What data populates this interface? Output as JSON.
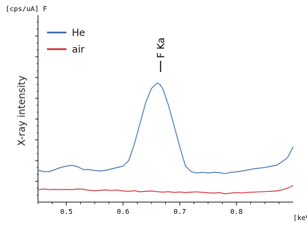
{
  "chart_data": {
    "type": "line",
    "unit_label": "[cps/uA] F",
    "xlabel": "[keV]",
    "ylabel": "X-ray intensity",
    "xlim": [
      0.45,
      0.9
    ],
    "ylim": [
      0,
      1.35
    ],
    "x_ticks": [
      0.5,
      0.6,
      0.7,
      0.8
    ],
    "x_tick_labels": [
      "0.5",
      "0.6",
      "0.7",
      "0.8"
    ],
    "x_minor_ticks": [
      0.45,
      0.475,
      0.525,
      0.55,
      0.575,
      0.625,
      0.65,
      0.675,
      0.725,
      0.75,
      0.775,
      0.825,
      0.85,
      0.875
    ],
    "y_ticks": [
      0.15,
      0.3,
      0.45,
      0.6,
      0.75,
      0.9,
      1.05,
      1.2
    ],
    "annotation": {
      "text": "F Ka",
      "x": 0.665,
      "y": 0.9
    },
    "legend_position": "top-left",
    "series": [
      {
        "name": "He",
        "color": "#3b6db0",
        "x": [
          0.45,
          0.46,
          0.47,
          0.48,
          0.49,
          0.5,
          0.51,
          0.52,
          0.53,
          0.54,
          0.55,
          0.56,
          0.57,
          0.58,
          0.59,
          0.6,
          0.61,
          0.62,
          0.63,
          0.64,
          0.65,
          0.66,
          0.665,
          0.67,
          0.68,
          0.69,
          0.7,
          0.71,
          0.72,
          0.73,
          0.74,
          0.75,
          0.76,
          0.77,
          0.78,
          0.79,
          0.8,
          0.81,
          0.82,
          0.83,
          0.84,
          0.85,
          0.86,
          0.87,
          0.88,
          0.89,
          0.9
        ],
        "values": [
          0.23,
          0.22,
          0.22,
          0.235,
          0.25,
          0.26,
          0.265,
          0.255,
          0.235,
          0.235,
          0.228,
          0.225,
          0.23,
          0.24,
          0.25,
          0.26,
          0.3,
          0.42,
          0.57,
          0.72,
          0.82,
          0.86,
          0.85,
          0.82,
          0.7,
          0.55,
          0.4,
          0.26,
          0.22,
          0.21,
          0.215,
          0.21,
          0.215,
          0.212,
          0.206,
          0.215,
          0.218,
          0.225,
          0.232,
          0.24,
          0.245,
          0.25,
          0.258,
          0.265,
          0.29,
          0.32,
          0.4
        ]
      },
      {
        "name": "air",
        "color": "#d42a2a",
        "x": [
          0.45,
          0.46,
          0.47,
          0.48,
          0.49,
          0.5,
          0.51,
          0.52,
          0.53,
          0.54,
          0.55,
          0.56,
          0.57,
          0.58,
          0.59,
          0.6,
          0.61,
          0.62,
          0.63,
          0.64,
          0.65,
          0.66,
          0.67,
          0.68,
          0.69,
          0.7,
          0.71,
          0.72,
          0.73,
          0.74,
          0.75,
          0.76,
          0.77,
          0.78,
          0.79,
          0.8,
          0.81,
          0.82,
          0.83,
          0.84,
          0.85,
          0.86,
          0.87,
          0.88,
          0.89,
          0.9
        ],
        "values": [
          0.09,
          0.095,
          0.09,
          0.092,
          0.09,
          0.092,
          0.09,
          0.095,
          0.093,
          0.085,
          0.082,
          0.085,
          0.088,
          0.084,
          0.087,
          0.08,
          0.078,
          0.082,
          0.075,
          0.078,
          0.08,
          0.076,
          0.072,
          0.075,
          0.07,
          0.073,
          0.068,
          0.072,
          0.074,
          0.07,
          0.067,
          0.065,
          0.068,
          0.06,
          0.065,
          0.068,
          0.066,
          0.07,
          0.072,
          0.074,
          0.076,
          0.078,
          0.08,
          0.088,
          0.1,
          0.12
        ]
      }
    ]
  }
}
